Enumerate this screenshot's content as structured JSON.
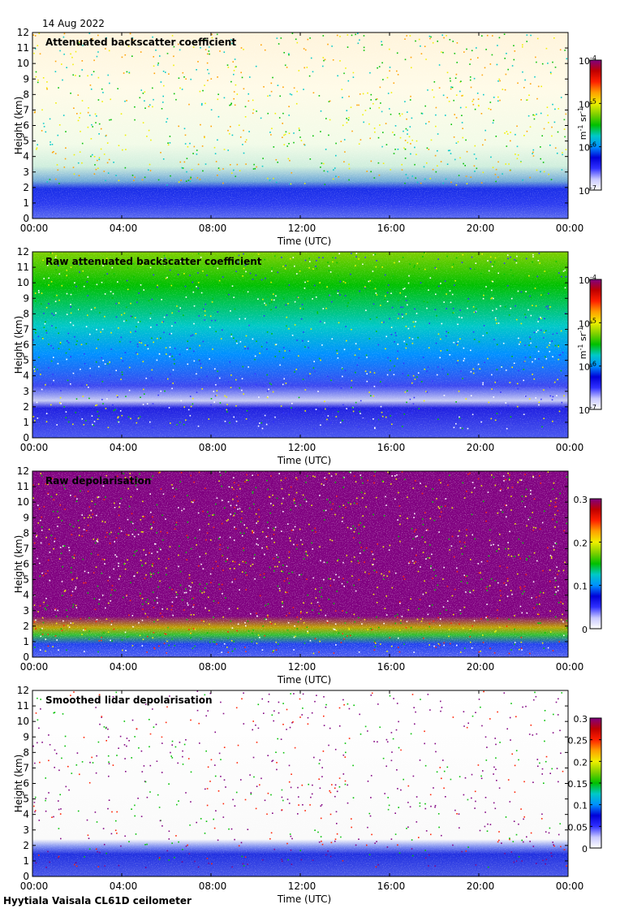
{
  "header": {
    "date": "14 Aug 2022"
  },
  "footer": {
    "instrument": "Hyytiala Vaisala CL61D ceilometer"
  },
  "colors": {
    "cmap": [
      "#ffffff",
      "#c8c8ff",
      "#3030ff",
      "#0000d8",
      "#0090ff",
      "#00c8c8",
      "#00c000",
      "#80d000",
      "#f0f000",
      "#ffa000",
      "#ff2000",
      "#c00000",
      "#800080"
    ]
  },
  "chart_data": [
    {
      "type": "heatmap",
      "title": "Attenuated backscatter coefficient",
      "xlabel": "Time (UTC)",
      "ylabel": "Height (km)",
      "xticks": [
        "00:00",
        "04:00",
        "08:00",
        "12:00",
        "16:00",
        "20:00",
        "00:00"
      ],
      "yticks": [
        "0",
        "1",
        "2",
        "3",
        "4",
        "5",
        "6",
        "7",
        "8",
        "9",
        "10",
        "11",
        "12"
      ],
      "ylim": [
        0,
        12
      ],
      "colorbar": {
        "scale": "log",
        "range": [
          1e-07,
          0.0001
        ],
        "units": "m-1 sr-1",
        "ticks": [
          {
            "base": "10",
            "exp": "-4"
          },
          {
            "base": "10",
            "exp": "-5"
          },
          {
            "base": "10",
            "exp": "-6"
          },
          {
            "base": "10",
            "exp": "-7"
          }
        ]
      }
    },
    {
      "type": "heatmap",
      "title": "Raw attenuated backscatter coefficient",
      "xlabel": "Time (UTC)",
      "ylabel": "Height (km)",
      "xticks": [
        "00:00",
        "04:00",
        "08:00",
        "12:00",
        "16:00",
        "20:00",
        "00:00"
      ],
      "yticks": [
        "0",
        "1",
        "2",
        "3",
        "4",
        "5",
        "6",
        "7",
        "8",
        "9",
        "10",
        "11",
        "12"
      ],
      "ylim": [
        0,
        12
      ],
      "colorbar": {
        "scale": "log",
        "range": [
          1e-07,
          0.0001
        ],
        "units": "m-1 sr-1",
        "ticks": [
          {
            "base": "10",
            "exp": "-4"
          },
          {
            "base": "10",
            "exp": "-5"
          },
          {
            "base": "10",
            "exp": "-6"
          },
          {
            "base": "10",
            "exp": "-7"
          }
        ]
      }
    },
    {
      "type": "heatmap",
      "title": "Raw depolarisation",
      "xlabel": "Time (UTC)",
      "ylabel": "Height (km)",
      "xticks": [
        "00:00",
        "04:00",
        "08:00",
        "12:00",
        "16:00",
        "20:00",
        "00:00"
      ],
      "yticks": [
        "0",
        "1",
        "2",
        "3",
        "4",
        "5",
        "6",
        "7",
        "8",
        "9",
        "10",
        "11",
        "12"
      ],
      "ylim": [
        0,
        12
      ],
      "colorbar": {
        "scale": "linear",
        "range": [
          0,
          0.3
        ],
        "units": "",
        "ticks": [
          {
            "base": "0.3"
          },
          {
            "base": "0.2"
          },
          {
            "base": "0.1"
          },
          {
            "base": "0"
          }
        ]
      }
    },
    {
      "type": "heatmap",
      "title": "Smoothed lidar depolarisation",
      "xlabel": "Time (UTC)",
      "ylabel": "Height (km)",
      "xticks": [
        "00:00",
        "04:00",
        "08:00",
        "12:00",
        "16:00",
        "20:00",
        "00:00"
      ],
      "yticks": [
        "0",
        "1",
        "2",
        "3",
        "4",
        "5",
        "6",
        "7",
        "8",
        "9",
        "10",
        "11",
        "12"
      ],
      "ylim": [
        0,
        12
      ],
      "colorbar": {
        "scale": "linear",
        "range": [
          0,
          0.3
        ],
        "units": "",
        "ticks": [
          {
            "base": "0.3"
          },
          {
            "base": "0.25"
          },
          {
            "base": "0.2"
          },
          {
            "base": "0.15"
          },
          {
            "base": "0.1"
          },
          {
            "base": "0.05"
          },
          {
            "base": "0"
          }
        ]
      }
    }
  ]
}
